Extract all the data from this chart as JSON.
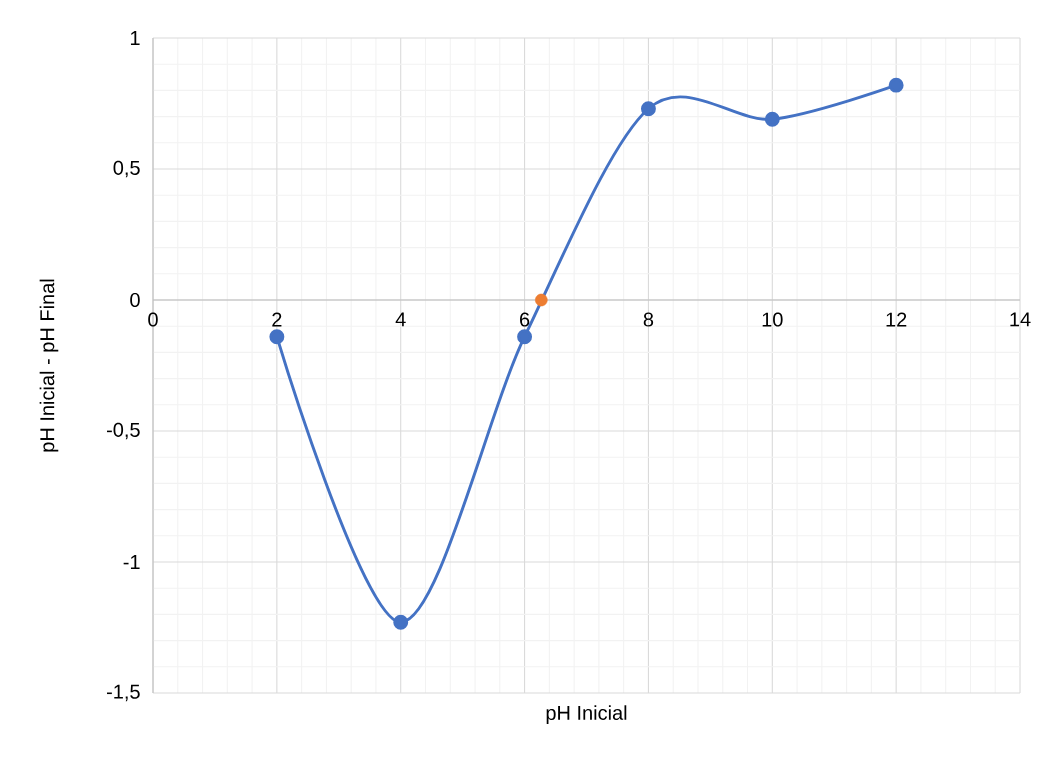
{
  "chart_data": {
    "type": "line",
    "xlabel": "pH Inicial",
    "ylabel": "pH Inicial - pH Final",
    "xlim": [
      0,
      14
    ],
    "xticks": [
      0,
      2,
      4,
      6,
      8,
      10,
      12,
      14
    ],
    "ylim": [
      -1.5,
      1
    ],
    "yticks": [
      {
        "value": -1.5,
        "label": "-1,5"
      },
      -1,
      {
        "value": -0.5,
        "label": "-0,5"
      },
      0,
      {
        "value": 0.5,
        "label": "0,5"
      },
      1
    ],
    "grid": true,
    "marker": "circle",
    "line_style": "solid",
    "series": [
      {
        "color": "#4472c4",
        "x": [
          2,
          4,
          6,
          8,
          10,
          12
        ],
        "values": [
          -0.14,
          -1.23,
          -0.14,
          0.73,
          0.69,
          0.82
        ]
      },
      {
        "type": "scatter",
        "color": "#ed7d31",
        "x": [
          6.27
        ],
        "values": [
          0
        ]
      }
    ]
  }
}
